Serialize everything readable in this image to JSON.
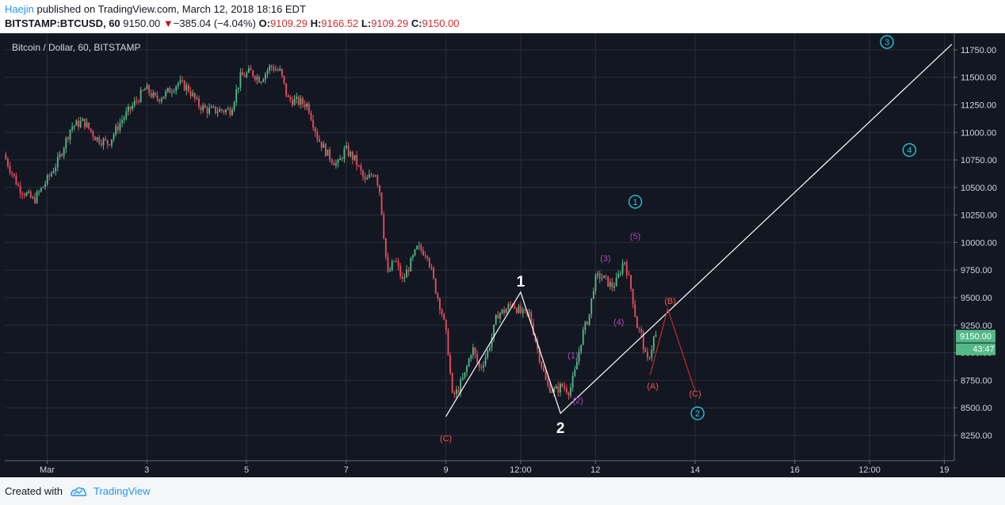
{
  "header": {
    "author": "Haejin",
    "published_text": " published on TradingView.com, March 12, 2018 18:16 EDT",
    "symbol": "BITSTAMP:BTCUSD, 60",
    "last": "9150.00",
    "change_arrow": "▼",
    "change": "−385.04 (−4.04%)",
    "o_label": "O:",
    "o_value": "9109.29",
    "h_label": "H:",
    "h_value": "9166.52",
    "l_label": "L:",
    "l_value": "9109.29",
    "c_label": "C:",
    "c_value": "9150.00"
  },
  "footer": {
    "created_with": "Created with",
    "brand": "TradingView",
    "logo_icon": "tradingview-logo-icon"
  },
  "chart_data": {
    "type": "candlestick",
    "title": "Bitcoin / Dollar, 60, BITSTAMP",
    "x_tick_labels": [
      "Mar",
      "3",
      "5",
      "7",
      "9",
      "12:00",
      "12",
      "14",
      "16",
      "12:00",
      "19"
    ],
    "x_tick_days": [
      1,
      3,
      5,
      7,
      9,
      10.5,
      12,
      14,
      16,
      17.5,
      19
    ],
    "y_tick_values": [
      8250,
      8500,
      8750,
      9000,
      9250,
      9500,
      9750,
      10000,
      10250,
      10500,
      10750,
      11000,
      11250,
      11500,
      11750
    ],
    "y_tick_labels": [
      "8250.00",
      "8500.00",
      "8750.00",
      "9000.00",
      "9250.00",
      "9500.00",
      "9750.00",
      "10000.00",
      "10250.00",
      "10500.00",
      "10750.00",
      "11000.00",
      "11250.00",
      "11500.00",
      "11750.00"
    ],
    "ylim": [
      8020,
      11900
    ],
    "xlim_day": [
      0.15,
      19.2
    ],
    "grid": true,
    "colors": {
      "background": "#131722",
      "grid": "#2a2e39",
      "up": "#53b987",
      "down": "#eb4d5c",
      "annotation_line": "#ffffff",
      "wave_cyan": "#26c6da",
      "wave_purple": "#ab47bc",
      "wave_red": "#ef5350"
    },
    "price_badge": {
      "value": "9150.00",
      "countdown": "43:47",
      "color": "#53b987"
    },
    "price_path": [
      [
        0.15,
        10800
      ],
      [
        0.45,
        10500
      ],
      [
        0.75,
        10380
      ],
      [
        1.0,
        10550
      ],
      [
        1.25,
        10750
      ],
      [
        1.5,
        11050
      ],
      [
        1.75,
        11100
      ],
      [
        2.0,
        10950
      ],
      [
        2.25,
        10900
      ],
      [
        2.5,
        11100
      ],
      [
        2.75,
        11250
      ],
      [
        3.0,
        11400
      ],
      [
        3.2,
        11300
      ],
      [
        3.4,
        11350
      ],
      [
        3.65,
        11450
      ],
      [
        3.85,
        11400
      ],
      [
        4.05,
        11250
      ],
      [
        4.25,
        11200
      ],
      [
        4.45,
        11200
      ],
      [
        4.7,
        11200
      ],
      [
        4.9,
        11500
      ],
      [
        5.1,
        11550
      ],
      [
        5.3,
        11480
      ],
      [
        5.5,
        11600
      ],
      [
        5.7,
        11550
      ],
      [
        5.85,
        11300
      ],
      [
        6.05,
        11280
      ],
      [
        6.25,
        11250
      ],
      [
        6.45,
        10950
      ],
      [
        6.65,
        10800
      ],
      [
        6.85,
        10700
      ],
      [
        7.0,
        10850
      ],
      [
        7.2,
        10750
      ],
      [
        7.4,
        10550
      ],
      [
        7.6,
        10650
      ],
      [
        7.7,
        10450
      ],
      [
        7.85,
        9700
      ],
      [
        8.0,
        9850
      ],
      [
        8.15,
        9650
      ],
      [
        8.3,
        9800
      ],
      [
        8.45,
        9950
      ],
      [
        8.65,
        9900
      ],
      [
        8.8,
        9600
      ],
      [
        8.95,
        9350
      ],
      [
        9.05,
        9100
      ],
      [
        9.15,
        8600
      ],
      [
        9.25,
        8650
      ],
      [
        9.4,
        8800
      ],
      [
        9.55,
        9050
      ],
      [
        9.7,
        8850
      ],
      [
        9.85,
        9000
      ],
      [
        9.95,
        9150
      ],
      [
        10.05,
        9350
      ],
      [
        10.2,
        9380
      ],
      [
        10.35,
        9450
      ],
      [
        10.55,
        9350
      ],
      [
        10.7,
        9350
      ],
      [
        10.85,
        9050
      ],
      [
        11.05,
        8700
      ],
      [
        11.2,
        8650
      ],
      [
        11.35,
        8700
      ],
      [
        11.5,
        8650
      ],
      [
        11.6,
        8800
      ],
      [
        11.75,
        9150
      ],
      [
        11.9,
        9350
      ],
      [
        12.0,
        9650
      ],
      [
        12.1,
        9700
      ],
      [
        12.25,
        9650
      ],
      [
        12.35,
        9600
      ],
      [
        12.45,
        9650
      ],
      [
        12.6,
        9850
      ],
      [
        12.75,
        9550
      ],
      [
        12.85,
        9250
      ],
      [
        12.95,
        9150
      ],
      [
        13.05,
        8900
      ],
      [
        13.15,
        9050
      ],
      [
        13.2,
        9150
      ]
    ],
    "annotations": {
      "lines_white": [
        {
          "points": [
            [
              9.0,
              8420
            ],
            [
              10.5,
              9550
            ],
            [
              11.3,
              8450
            ],
            [
              19.15,
              11800
            ]
          ]
        }
      ],
      "lines_red": [
        {
          "points": [
            [
              13.1,
              8800
            ],
            [
              13.45,
              9400
            ],
            [
              14.0,
              8650
            ]
          ]
        }
      ],
      "labels": [
        {
          "text": "1",
          "day": 10.5,
          "price": 9650,
          "color": "#ffffff",
          "size": 19,
          "style": "plain"
        },
        {
          "text": "2",
          "day": 11.3,
          "price": 8320,
          "color": "#ffffff",
          "size": 19,
          "style": "plain"
        },
        {
          "text": "(C)",
          "day": 9.0,
          "price": 8225,
          "color": "#ef5350",
          "size": 11,
          "style": "plain"
        },
        {
          "text": "(1)",
          "day": 11.55,
          "price": 8980,
          "color": "#ab47bc",
          "size": 11,
          "style": "plain"
        },
        {
          "text": "(2)",
          "day": 11.65,
          "price": 8570,
          "color": "#ab47bc",
          "size": 11,
          "style": "plain"
        },
        {
          "text": "(3)",
          "day": 12.2,
          "price": 9860,
          "color": "#ab47bc",
          "size": 11,
          "style": "plain"
        },
        {
          "text": "(4)",
          "day": 12.47,
          "price": 9280,
          "color": "#ab47bc",
          "size": 11,
          "style": "plain"
        },
        {
          "text": "(5)",
          "day": 12.8,
          "price": 10060,
          "color": "#ab47bc",
          "size": 11,
          "style": "plain"
        },
        {
          "text": "(A)",
          "day": 13.15,
          "price": 8700,
          "color": "#ef5350",
          "size": 11,
          "style": "plain"
        },
        {
          "text": "(B)",
          "day": 13.5,
          "price": 9470,
          "color": "#ef5350",
          "size": 11,
          "style": "plain"
        },
        {
          "text": "(C)",
          "day": 14.0,
          "price": 8630,
          "color": "#ef5350",
          "size": 11,
          "style": "plain"
        },
        {
          "text": "1",
          "day": 12.8,
          "price": 10370,
          "color": "#26c6da",
          "size": 11,
          "style": "circled"
        },
        {
          "text": "2",
          "day": 14.05,
          "price": 8450,
          "color": "#26c6da",
          "size": 11,
          "style": "circled"
        },
        {
          "text": "3",
          "day": 17.85,
          "price": 11820,
          "color": "#26c6da",
          "size": 11,
          "style": "circled"
        },
        {
          "text": "4",
          "day": 18.3,
          "price": 10840,
          "color": "#26c6da",
          "size": 11,
          "style": "circled"
        }
      ]
    }
  }
}
